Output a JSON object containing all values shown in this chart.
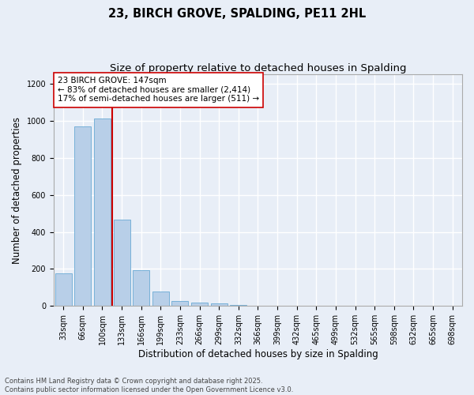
{
  "title": "23, BIRCH GROVE, SPALDING, PE11 2HL",
  "subtitle": "Size of property relative to detached houses in Spalding",
  "xlabel": "Distribution of detached houses by size in Spalding",
  "ylabel": "Number of detached properties",
  "categories": [
    "33sqm",
    "66sqm",
    "100sqm",
    "133sqm",
    "166sqm",
    "199sqm",
    "233sqm",
    "266sqm",
    "299sqm",
    "332sqm",
    "366sqm",
    "399sqm",
    "432sqm",
    "465sqm",
    "499sqm",
    "532sqm",
    "565sqm",
    "598sqm",
    "632sqm",
    "665sqm",
    "698sqm"
  ],
  "values": [
    178,
    970,
    1010,
    465,
    193,
    78,
    25,
    20,
    14,
    5,
    0,
    0,
    0,
    0,
    0,
    0,
    0,
    0,
    0,
    0,
    0
  ],
  "bar_color": "#b8cfe8",
  "bar_edge_color": "#6aaad4",
  "property_line_color": "#cc0000",
  "annotation_text": "23 BIRCH GROVE: 147sqm\n← 83% of detached houses are smaller (2,414)\n17% of semi-detached houses are larger (511) →",
  "annotation_box_color": "#ffffff",
  "annotation_box_edge_color": "#cc0000",
  "ylim": [
    0,
    1250
  ],
  "yticks": [
    0,
    200,
    400,
    600,
    800,
    1000,
    1200
  ],
  "background_color": "#e8eef7",
  "grid_color": "#ffffff",
  "footer_text": "Contains HM Land Registry data © Crown copyright and database right 2025.\nContains public sector information licensed under the Open Government Licence v3.0.",
  "title_fontsize": 10.5,
  "subtitle_fontsize": 9.5,
  "axis_label_fontsize": 8.5,
  "tick_fontsize": 7,
  "annotation_fontsize": 7.5,
  "footer_fontsize": 6
}
